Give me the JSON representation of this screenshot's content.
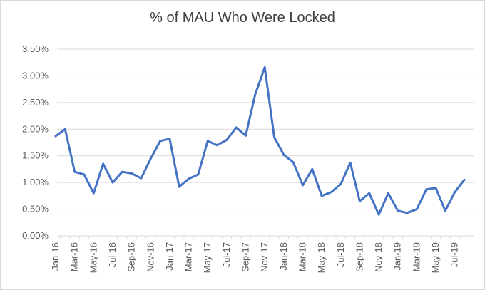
{
  "chart_data": {
    "type": "line",
    "title": "% of MAU Who Were Locked",
    "xlabel": "",
    "ylabel": "",
    "ylim": [
      0,
      0.035
    ],
    "y_ticks": [
      "0.00%",
      "0.50%",
      "1.00%",
      "1.50%",
      "2.00%",
      "2.50%",
      "3.00%",
      "3.50%"
    ],
    "x_tick_labels": [
      "Jan-16",
      "Mar-16",
      "May-16",
      "Jul-16",
      "Sep-16",
      "Nov-16",
      "Jan-17",
      "Mar-17",
      "May-17",
      "Jul-17",
      "Sep-17",
      "Nov-17",
      "Jan-18",
      "Mar-18",
      "May-18",
      "Jul-18",
      "Sep-18",
      "Nov-18",
      "Jan-19",
      "Mar-19",
      "May-19",
      "Jul-19"
    ],
    "grid": true,
    "legend": "none",
    "line_color": "#4472C4",
    "categories": [
      "Jan-16",
      "Feb-16",
      "Mar-16",
      "Apr-16",
      "May-16",
      "Jun-16",
      "Jul-16",
      "Aug-16",
      "Sep-16",
      "Oct-16",
      "Nov-16",
      "Dec-16",
      "Jan-17",
      "Feb-17",
      "Mar-17",
      "Apr-17",
      "May-17",
      "Jun-17",
      "Jul-17",
      "Aug-17",
      "Sep-17",
      "Oct-17",
      "Nov-17",
      "Dec-17",
      "Jan-18",
      "Feb-18",
      "Mar-18",
      "Apr-18",
      "May-18",
      "Jun-18",
      "Jul-18",
      "Aug-18",
      "Sep-18",
      "Oct-18",
      "Nov-18",
      "Dec-18",
      "Jan-19",
      "Feb-19",
      "Mar-19",
      "Apr-19",
      "May-19",
      "Jun-19",
      "Jul-19",
      "Aug-19"
    ],
    "values": [
      0.0187,
      0.02,
      0.012,
      0.0115,
      0.008,
      0.0135,
      0.01,
      0.012,
      0.0117,
      0.0108,
      0.0145,
      0.0178,
      0.0182,
      0.0092,
      0.0107,
      0.0115,
      0.0178,
      0.017,
      0.018,
      0.0203,
      0.0188,
      0.0265,
      0.0316,
      0.0185,
      0.0152,
      0.0138,
      0.0095,
      0.0125,
      0.0075,
      0.0082,
      0.0097,
      0.0137,
      0.0065,
      0.008,
      0.004,
      0.008,
      0.0047,
      0.0043,
      0.005,
      0.0087,
      0.009,
      0.0047,
      0.0082,
      0.0105
    ]
  }
}
